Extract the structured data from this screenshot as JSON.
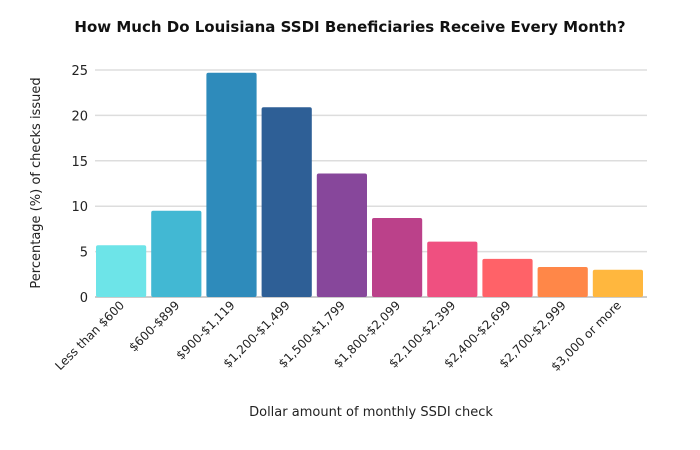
{
  "chart_data": {
    "type": "bar",
    "title": "How Much Do Louisiana SSDI Beneficiaries Receive Every Month?",
    "xlabel": "Dollar amount of monthly SSDI check",
    "ylabel": "Percentage (%) of checks issued",
    "categories": [
      "Less than $600",
      "$600-$899",
      "$900-$1,119",
      "$1,200-$1,499",
      "$1,500-$1,799",
      "$1,800-$2,099",
      "$2,100-$2,399",
      "$2,400-$2,699",
      "$2,700-$2,999",
      "$3,000 or more"
    ],
    "values": [
      5.7,
      9.5,
      24.7,
      20.9,
      13.6,
      8.7,
      6.1,
      4.2,
      3.3,
      3.0
    ],
    "colors": [
      "#6de4e8",
      "#42b8d3",
      "#2e8bbb",
      "#2e5f96",
      "#87479b",
      "#bb418a",
      "#ef5080",
      "#ff6268",
      "#ff8748",
      "#ffb73e"
    ],
    "ylim": [
      0,
      25
    ],
    "yticks": [
      "0",
      "5",
      "10",
      "15",
      "20",
      "25"
    ],
    "grid": true,
    "legend": "none"
  }
}
